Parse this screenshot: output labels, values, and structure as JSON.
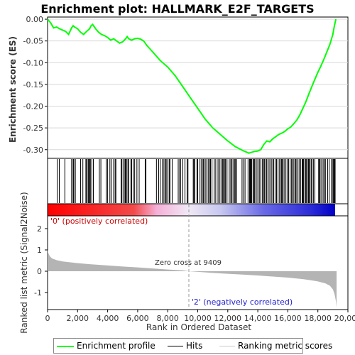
{
  "title": "Enrichment plot: HALLMARK_E2F_TARGETS",
  "colors": {
    "es_line": "#00ff00",
    "hit_line": "#000000",
    "metric_fill": "#b4b4b4",
    "zero_line": "#808080",
    "pos_label": "#cc0000",
    "neg_label": "#2222cc",
    "rank_red": "#ff0000",
    "rank_blue": "#0000ff"
  },
  "legend": {
    "items": [
      {
        "label": "Enrichment profile",
        "color": "#00ff00",
        "icon": "green-line"
      },
      {
        "label": "Hits",
        "color": "#000000",
        "icon": "black-line"
      },
      {
        "label": "Ranking metric scores",
        "color": "#cccccc",
        "icon": "gray-line"
      }
    ]
  },
  "chart_data": [
    {
      "type": "line",
      "name": "enrichment-profile",
      "title": "Enrichment plot: HALLMARK_E2F_TARGETS",
      "ylabel": "Enrichment score (ES)",
      "xlim": [
        0,
        20000
      ],
      "ylim": [
        -0.32,
        0.005
      ],
      "yticks": [
        0.0,
        -0.05,
        -0.1,
        -0.15,
        -0.2,
        -0.25,
        -0.3
      ],
      "ytick_labels": [
        "0.00",
        "-0.05",
        "-0.10",
        "-0.15",
        "-0.20",
        "-0.25",
        "-0.30"
      ],
      "grid": true,
      "x": [
        0,
        200,
        400,
        600,
        800,
        1000,
        1200,
        1400,
        1600,
        1700,
        1800,
        2000,
        2200,
        2400,
        2600,
        2800,
        2900,
        3000,
        3200,
        3400,
        3600,
        3800,
        4000,
        4200,
        4400,
        4600,
        4800,
        5000,
        5200,
        5300,
        5400,
        5600,
        5800,
        6000,
        6200,
        6400,
        6600,
        7000,
        7500,
        8000,
        8500,
        9000,
        9500,
        10000,
        10500,
        11000,
        11500,
        12000,
        12500,
        13000,
        13200,
        13400,
        13600,
        13800,
        14000,
        14200,
        14400,
        14600,
        14800,
        15000,
        15200,
        15400,
        15600,
        15800,
        16000,
        16200,
        16400,
        16600,
        16800,
        17000,
        17200,
        17400,
        17600,
        17800,
        18000,
        18200,
        18400,
        18600,
        18800,
        19000,
        19100,
        19200
      ],
      "y": [
        0.0,
        -0.008,
        -0.02,
        -0.018,
        -0.022,
        -0.025,
        -0.028,
        -0.035,
        -0.02,
        -0.015,
        -0.018,
        -0.022,
        -0.03,
        -0.035,
        -0.028,
        -0.022,
        -0.015,
        -0.012,
        -0.022,
        -0.03,
        -0.035,
        -0.038,
        -0.042,
        -0.048,
        -0.045,
        -0.05,
        -0.055,
        -0.052,
        -0.045,
        -0.04,
        -0.045,
        -0.048,
        -0.045,
        -0.044,
        -0.046,
        -0.05,
        -0.06,
        -0.075,
        -0.095,
        -0.11,
        -0.13,
        -0.155,
        -0.18,
        -0.205,
        -0.23,
        -0.25,
        -0.265,
        -0.28,
        -0.293,
        -0.302,
        -0.305,
        -0.308,
        -0.306,
        -0.304,
        -0.303,
        -0.3,
        -0.288,
        -0.28,
        -0.282,
        -0.275,
        -0.27,
        -0.265,
        -0.262,
        -0.258,
        -0.252,
        -0.248,
        -0.24,
        -0.232,
        -0.22,
        -0.205,
        -0.19,
        -0.172,
        -0.155,
        -0.138,
        -0.122,
        -0.108,
        -0.092,
        -0.075,
        -0.058,
        -0.035,
        -0.015,
        0.0
      ]
    },
    {
      "type": "scatter",
      "name": "hits",
      "description_label": "Hits",
      "x": [
        650,
        780,
        1150,
        1600,
        1700,
        1750,
        1850,
        2200,
        2350,
        2550,
        2600,
        2700,
        2750,
        2800,
        2850,
        2950,
        3050,
        3450,
        3550,
        3900,
        4000,
        4150,
        4250,
        4400,
        4500,
        4550,
        4900,
        4950,
        5050,
        5150,
        5200,
        5250,
        5350,
        5400,
        5550,
        5600,
        5700,
        5800,
        5950,
        6100,
        6500,
        6550,
        7250,
        7400,
        7500,
        7650,
        7750,
        7850,
        7900,
        8000,
        8100,
        8150,
        8300,
        8700,
        8800,
        8850,
        9000,
        9150,
        9300,
        9350,
        9700,
        9750,
        9800,
        9950,
        10000,
        10150,
        10250,
        10350,
        10400,
        10500,
        10600,
        10700,
        10800,
        10850,
        10950,
        11100,
        11200,
        11350,
        11450,
        11550,
        11650,
        11700,
        11800,
        11850,
        11950,
        12100,
        12200,
        12250,
        12350,
        12450,
        12500,
        12600,
        12950,
        13050,
        13150,
        13350,
        13450,
        13500,
        13550,
        13600,
        13700,
        13750,
        13800,
        13900,
        14000,
        14100,
        14200,
        14300,
        14400,
        14450,
        14550,
        14600,
        14700,
        14800,
        14900,
        15000,
        15050,
        15150,
        15250,
        15350,
        15450,
        15550,
        15600,
        15650,
        15750,
        15850,
        15950,
        16050,
        16150,
        16250,
        16300,
        16400,
        16500,
        16550,
        16650,
        16750,
        16850,
        16950,
        17000,
        17050,
        17150,
        17200,
        17250,
        17350,
        17400,
        17450,
        17550,
        17600,
        17700,
        17800,
        18050,
        18100,
        18150,
        18250,
        18350,
        18450,
        18500,
        18650,
        18750,
        18900,
        19000,
        19050,
        19100,
        19150
      ]
    },
    {
      "type": "area",
      "name": "ranking-metric",
      "ylabel": "Ranked list metric (Signal2Noise)",
      "xlabel": "Rank in Ordered Dataset",
      "xlim": [
        0,
        20000
      ],
      "ylim": [
        -1.8,
        2.6
      ],
      "xticks": [
        0,
        2000,
        4000,
        6000,
        8000,
        10000,
        12000,
        14000,
        16000,
        18000,
        20000
      ],
      "xtick_labels": [
        "0",
        "2,000",
        "4,000",
        "6,000",
        "8,000",
        "10,000",
        "12,000",
        "14,000",
        "16,000",
        "18,000",
        "20,000"
      ],
      "yticks": [
        2,
        1,
        0,
        -1
      ],
      "ytick_labels": [
        "2",
        "1",
        "0",
        "-1"
      ],
      "x": [
        0,
        50,
        150,
        300,
        600,
        1000,
        2000,
        3000,
        4000,
        5000,
        6000,
        7000,
        8000,
        9000,
        9409,
        10000,
        11000,
        12000,
        13000,
        14000,
        15000,
        16000,
        17000,
        17500,
        18000,
        18500,
        18800,
        19000,
        19100,
        19200,
        19250
      ],
      "y": [
        1.0,
        0.85,
        0.7,
        0.6,
        0.52,
        0.46,
        0.38,
        0.32,
        0.27,
        0.22,
        0.18,
        0.13,
        0.08,
        0.04,
        0.0,
        -0.03,
        -0.08,
        -0.12,
        -0.16,
        -0.2,
        -0.25,
        -0.3,
        -0.37,
        -0.42,
        -0.48,
        -0.57,
        -0.68,
        -0.85,
        -1.05,
        -1.4,
        -1.7
      ],
      "annotations": {
        "zero_cross": "Zero cross at 9409",
        "zero_cross_x": 9409,
        "positive": "'0' (positively correlated)",
        "negative": "'2' (negatively correlated)"
      }
    }
  ]
}
